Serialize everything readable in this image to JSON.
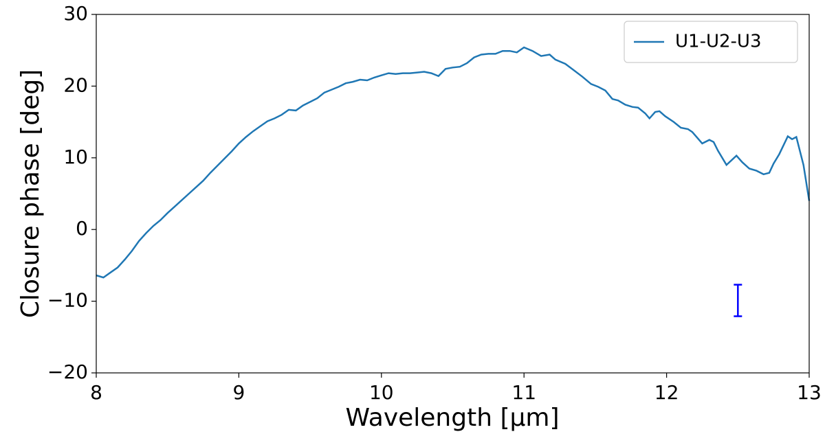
{
  "chart_data": {
    "type": "line",
    "xlabel": "Wavelength [µm]",
    "ylabel": "Closure phase [deg]",
    "xlim": [
      8,
      13
    ],
    "xticks": [
      8,
      9,
      10,
      11,
      12,
      13
    ],
    "ylim": [
      -20,
      30
    ],
    "yticks": [
      {
        "value": -20,
        "label": "−20"
      },
      {
        "value": -10,
        "label": "−10"
      },
      0,
      10,
      20,
      30
    ],
    "legend": "upper right",
    "x": [
      8.0,
      8.05,
      8.1,
      8.15,
      8.2,
      8.25,
      8.3,
      8.35,
      8.4,
      8.45,
      8.5,
      8.55,
      8.6,
      8.65,
      8.7,
      8.75,
      8.8,
      8.85,
      8.9,
      8.95,
      9.0,
      9.05,
      9.1,
      9.15,
      9.2,
      9.25,
      9.3,
      9.35,
      9.4,
      9.45,
      9.5,
      9.55,
      9.6,
      9.65,
      9.7,
      9.75,
      9.8,
      9.85,
      9.9,
      9.95,
      10.0,
      10.05,
      10.1,
      10.15,
      10.2,
      10.25,
      10.3,
      10.35,
      10.4,
      10.45,
      10.5,
      10.55,
      10.6,
      10.65,
      10.7,
      10.75,
      10.8,
      10.85,
      10.9,
      10.95,
      11.0,
      11.06,
      11.12,
      11.18,
      11.22,
      11.29,
      11.35,
      11.41,
      11.47,
      11.52,
      11.57,
      11.62,
      11.66,
      11.71,
      11.76,
      11.8,
      11.85,
      11.88,
      11.92,
      11.95,
      11.99,
      12.05,
      12.1,
      12.15,
      12.18,
      12.25,
      12.3,
      12.33,
      12.36,
      12.42,
      12.49,
      12.53,
      12.58,
      12.63,
      12.68,
      12.72,
      12.75,
      12.79,
      12.85,
      12.88,
      12.91,
      12.96,
      13.0
    ],
    "series": [
      {
        "name": "U1-U2-U3",
        "color": "#1f77b4",
        "values": [
          -6.4,
          -6.7,
          -6.0,
          -5.3,
          -4.2,
          -3.0,
          -1.6,
          -0.5,
          0.5,
          1.3,
          2.3,
          3.2,
          4.1,
          5.0,
          5.9,
          6.8,
          7.9,
          8.9,
          9.9,
          10.9,
          12.0,
          12.9,
          13.7,
          14.4,
          15.1,
          15.5,
          16.0,
          16.7,
          16.6,
          17.3,
          17.8,
          18.3,
          19.1,
          19.5,
          19.9,
          20.4,
          20.6,
          20.9,
          20.8,
          21.2,
          21.5,
          21.8,
          21.7,
          21.8,
          21.8,
          21.9,
          22.0,
          21.8,
          21.4,
          22.4,
          22.6,
          22.7,
          23.2,
          24.0,
          24.4,
          24.5,
          24.5,
          24.9,
          24.9,
          24.7,
          25.4,
          24.9,
          24.2,
          24.4,
          23.7,
          23.1,
          22.2,
          21.3,
          20.3,
          19.9,
          19.4,
          18.2,
          18.0,
          17.4,
          17.1,
          17.0,
          16.2,
          15.5,
          16.4,
          16.5,
          15.8,
          15.0,
          14.2,
          14.0,
          13.6,
          12.0,
          12.5,
          12.2,
          11.0,
          9.0,
          10.3,
          9.4,
          8.5,
          8.2,
          7.7,
          7.9,
          9.2,
          10.5,
          13.0,
          12.6,
          12.9,
          9.0,
          4.0
        ]
      }
    ],
    "errorbar": {
      "x": 12.5,
      "y": -9.9,
      "yerr": 2.2,
      "color": "#0000ff"
    }
  }
}
